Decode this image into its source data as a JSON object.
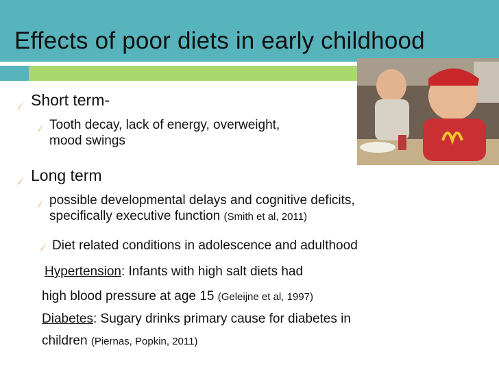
{
  "slide": {
    "title": "Effects of poor diets in early childhood",
    "colors": {
      "header": "#57b3bc",
      "accent": "#a8d86e",
      "bullet": "#e0781c"
    },
    "short_term": {
      "heading": "Short term-",
      "sub_line1": "Tooth decay, lack of energy, overweight,",
      "sub_line2": "mood swings"
    },
    "long_term": {
      "heading": "Long term",
      "sub1_line1": "possible developmental delays and cognitive deficits,",
      "sub1_line2_text": "specifically executive function",
      "sub1_cite": "(Smith et al, 2011)",
      "sub2": "Diet related conditions in adolescence and adulthood",
      "hypertension_label": "Hypertension",
      "hypertension_line1": ": Infants with high salt diets had",
      "hypertension_line2": "high blood pressure at age 15",
      "hypertension_cite": "(Geleijne et al, 1997)",
      "diabetes_label": "Diabetes",
      "diabetes_line1": ": Sugary drinks primary cause for diabetes in",
      "diabetes_line2": "children",
      "diabetes_cite": "(Piernas, Popkin, 2011)"
    },
    "image_icon": "children-eating-fast-food-photo"
  }
}
